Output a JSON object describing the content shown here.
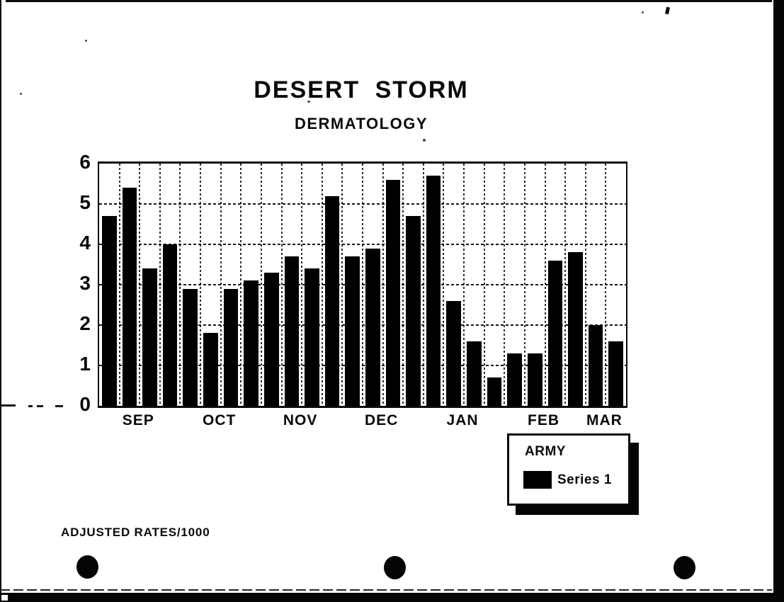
{
  "document": {
    "title": "DESERT STORM",
    "subtitle": "DERMATOLOGY",
    "footnote": "ADJUSTED RATES/1000"
  },
  "legend": {
    "title": "ARMY",
    "series": [
      {
        "label": "Series 1",
        "swatch_color": "#000000"
      }
    ]
  },
  "chart_data": {
    "type": "bar",
    "title": "DESERT STORM",
    "subtitle": "DERMATOLOGY",
    "xlabel": "",
    "ylabel": "ADJUSTED RATES/1000",
    "ylim": [
      0,
      6
    ],
    "yticks": [
      0,
      1,
      2,
      3,
      4,
      5,
      6
    ],
    "grid": true,
    "legend_position": "below-right",
    "bar_color": "#000000",
    "categories": [
      "SEP",
      "OCT",
      "NOV",
      "DEC",
      "JAN",
      "FEB",
      "MAR"
    ],
    "bars_per_category": [
      4,
      4,
      4,
      4,
      4,
      4,
      2
    ],
    "series": [
      {
        "name": "Series 1",
        "values": [
          4.7,
          5.4,
          3.4,
          4.0,
          2.9,
          1.8,
          2.9,
          3.1,
          3.3,
          3.7,
          3.4,
          5.2,
          3.7,
          3.9,
          5.6,
          4.7,
          5.7,
          2.6,
          1.6,
          0.7,
          1.3,
          1.3,
          3.6,
          3.8,
          2.0,
          1.6
        ]
      }
    ]
  }
}
